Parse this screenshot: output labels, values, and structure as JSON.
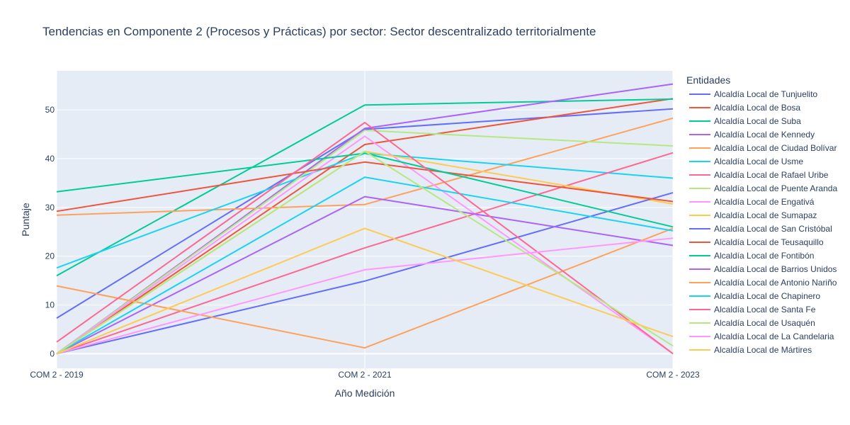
{
  "chart_data": {
    "type": "line",
    "title": "Tendencias en Componente 2 (Procesos y Prácticas) por sector: Sector descentralizado territorialmente",
    "xlabel": "Año Medición",
    "ylabel": "Puntaje",
    "categories": [
      "COM 2 - 2019",
      "COM 2 - 2021",
      "COM 2 - 2023"
    ],
    "ylim": [
      -3,
      58
    ],
    "yticks": [
      0,
      10,
      20,
      30,
      40,
      50
    ],
    "grid": true,
    "legend_title": "Entidades",
    "legend_position": "right",
    "series": [
      {
        "name": "Alcaldía Local de Tunjuelito",
        "color": "#636efa",
        "values": [
          7.3,
          46.0,
          50.2
        ]
      },
      {
        "name": "Alcaldía Local de Bosa",
        "color": "#EF553B",
        "values": [
          0,
          42.9,
          52.3
        ]
      },
      {
        "name": "Alcaldía Local de Suba",
        "color": "#00cc96",
        "values": [
          16.0,
          51.0,
          52.2
        ]
      },
      {
        "name": "Alcaldía Local de Kennedy",
        "color": "#ab63fa",
        "values": [
          0,
          46.2,
          55.3
        ]
      },
      {
        "name": "Alcaldía Local de Ciudad Bolívar",
        "color": "#FFA15A",
        "values": [
          28.4,
          30.6,
          48.3
        ]
      },
      {
        "name": "Alcaldía Local de Usme",
        "color": "#19d3f3",
        "values": [
          17.6,
          41.1,
          36.0
        ]
      },
      {
        "name": "Alcaldía Local de Rafael Uribe",
        "color": "#FF6692",
        "values": [
          0,
          21.7,
          41.2
        ]
      },
      {
        "name": "Alcaldía Local de Puente Aranda",
        "color": "#B6E880",
        "values": [
          0,
          45.8,
          42.6
        ]
      },
      {
        "name": "Alcaldía Local de Engativá",
        "color": "#FF97FF",
        "values": [
          0,
          44.6,
          0
        ]
      },
      {
        "name": "Alcaldía Local de Sumapaz",
        "color": "#FECB52",
        "values": [
          0,
          41.5,
          30.7
        ]
      },
      {
        "name": "Alcaldía Local de San Cristóbal",
        "color": "#636efa",
        "values": [
          0,
          14.9,
          33.0
        ]
      },
      {
        "name": "Alcaldía Local de Teusaquillo",
        "color": "#EF553B",
        "values": [
          29.2,
          39.3,
          31.2
        ]
      },
      {
        "name": "Alcaldía Local de Fontibón",
        "color": "#00cc96",
        "values": [
          33.2,
          41.1,
          26.0
        ]
      },
      {
        "name": "Alcaldía Local de Barrios Unidos",
        "color": "#ab63fa",
        "values": [
          0,
          32.2,
          22.2
        ]
      },
      {
        "name": "Alcaldía Local de Antonio Nariño",
        "color": "#FFA15A",
        "values": [
          13.9,
          1.2,
          25.7
        ]
      },
      {
        "name": "Alcaldía Local de Chapinero",
        "color": "#19d3f3",
        "values": [
          0,
          36.2,
          25.2
        ]
      },
      {
        "name": "Alcaldía Local de Santa Fe",
        "color": "#FF6692",
        "values": [
          2.4,
          47.4,
          0
        ]
      },
      {
        "name": "Alcaldía Local de Usaquén",
        "color": "#B6E880",
        "values": [
          0,
          41.5,
          1.6
        ]
      },
      {
        "name": "Alcaldía Local de La Candelaria",
        "color": "#FF97FF",
        "values": [
          0,
          17.2,
          23.7
        ]
      },
      {
        "name": "Alcaldía Local de Mártires",
        "color": "#FECB52",
        "values": [
          0,
          25.7,
          3.5
        ]
      }
    ]
  }
}
